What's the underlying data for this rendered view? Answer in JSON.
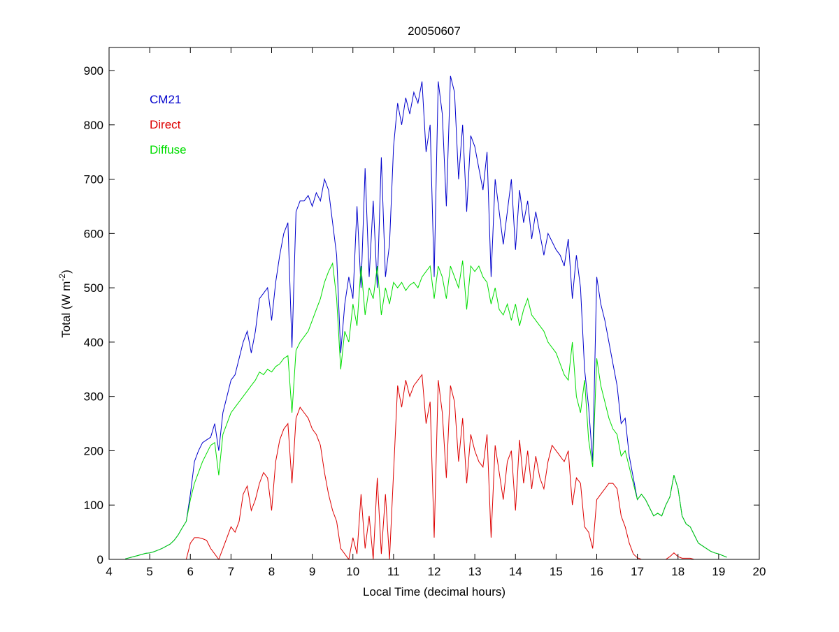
{
  "chart_data": {
    "type": "line",
    "title": "20050607",
    "xlabel": "Local Time (decimal hours)",
    "ylabel": "Total (W m",
    "ylabel_sup": "-2",
    "ylabel_end": ")",
    "xlim": [
      4,
      20
    ],
    "ylim": [
      0,
      900
    ],
    "xticks": [
      4,
      5,
      6,
      7,
      8,
      9,
      10,
      11,
      12,
      13,
      14,
      15,
      16,
      17,
      18,
      19,
      20
    ],
    "yticks": [
      0,
      100,
      200,
      300,
      400,
      500,
      600,
      700,
      800,
      900
    ],
    "grid": false,
    "legend_placement": "top-left",
    "x_start": 4.4,
    "x_step": 0.1,
    "series": [
      {
        "name": "CM21",
        "color": "#0000cc",
        "values": [
          1,
          3,
          5,
          7,
          9,
          11,
          12,
          14,
          17,
          20,
          24,
          28,
          35,
          45,
          58,
          70,
          120,
          180,
          200,
          215,
          220,
          225,
          250,
          200,
          270,
          300,
          330,
          340,
          370,
          400,
          420,
          380,
          420,
          480,
          490,
          500,
          440,
          510,
          560,
          600,
          620,
          390,
          640,
          660,
          660,
          670,
          650,
          675,
          660,
          700,
          680,
          620,
          560,
          380,
          470,
          520,
          480,
          650,
          500,
          720,
          520,
          660,
          500,
          740,
          520,
          580,
          760,
          840,
          800,
          850,
          820,
          860,
          840,
          880,
          750,
          800,
          520,
          880,
          820,
          650,
          890,
          860,
          700,
          800,
          640,
          780,
          760,
          720,
          680,
          750,
          520,
          700,
          640,
          580,
          640,
          700,
          570,
          680,
          620,
          660,
          590,
          640,
          600,
          560,
          600,
          585,
          570,
          560,
          540,
          590,
          480,
          560,
          500,
          350,
          280,
          180,
          520,
          470,
          440,
          400,
          360,
          320,
          250,
          260,
          190,
          150,
          110,
          120,
          110,
          95,
          80,
          85,
          80,
          100,
          115,
          155,
          130,
          80,
          65,
          60,
          45,
          30,
          25,
          20,
          15,
          12,
          10,
          7,
          4
        ]
      },
      {
        "name": "Direct",
        "color": "#dd0000",
        "values": [
          0,
          0,
          0,
          0,
          0,
          0,
          0,
          0,
          0,
          0,
          0,
          0,
          0,
          0,
          0,
          0,
          30,
          40,
          40,
          38,
          35,
          20,
          10,
          0,
          20,
          40,
          60,
          50,
          70,
          120,
          135,
          90,
          110,
          140,
          160,
          150,
          90,
          180,
          220,
          240,
          250,
          140,
          260,
          280,
          270,
          260,
          240,
          230,
          210,
          160,
          120,
          90,
          70,
          20,
          10,
          0,
          40,
          10,
          120,
          20,
          80,
          0,
          150,
          10,
          120,
          0,
          160,
          320,
          280,
          330,
          300,
          320,
          330,
          340,
          250,
          290,
          40,
          330,
          270,
          150,
          320,
          290,
          180,
          260,
          140,
          230,
          200,
          180,
          170,
          230,
          40,
          210,
          160,
          110,
          180,
          200,
          90,
          220,
          140,
          200,
          130,
          190,
          150,
          130,
          180,
          210,
          200,
          190,
          180,
          200,
          100,
          150,
          140,
          60,
          50,
          20,
          110,
          120,
          130,
          140,
          140,
          130,
          80,
          60,
          30,
          10,
          3,
          0,
          0,
          0,
          0,
          0,
          0,
          0,
          5,
          12,
          5,
          2,
          2,
          2,
          0,
          0,
          0,
          0,
          0,
          0,
          0,
          0,
          0
        ]
      },
      {
        "name": "Diffuse",
        "color": "#00dd00",
        "values": [
          1,
          3,
          5,
          7,
          9,
          11,
          12,
          14,
          17,
          20,
          24,
          28,
          35,
          45,
          58,
          70,
          110,
          140,
          160,
          180,
          195,
          210,
          215,
          155,
          230,
          250,
          270,
          280,
          290,
          300,
          310,
          320,
          330,
          345,
          340,
          350,
          345,
          355,
          360,
          370,
          375,
          270,
          385,
          400,
          410,
          420,
          440,
          460,
          480,
          510,
          530,
          545,
          480,
          350,
          420,
          400,
          470,
          430,
          540,
          450,
          500,
          480,
          540,
          450,
          500,
          470,
          510,
          500,
          510,
          495,
          505,
          510,
          500,
          520,
          530,
          540,
          480,
          540,
          520,
          480,
          540,
          520,
          500,
          550,
          460,
          540,
          530,
          540,
          520,
          510,
          470,
          500,
          460,
          450,
          470,
          440,
          470,
          430,
          460,
          480,
          450,
          440,
          430,
          420,
          400,
          390,
          380,
          360,
          340,
          330,
          400,
          300,
          270,
          330,
          220,
          170,
          370,
          320,
          290,
          260,
          240,
          230,
          190,
          200,
          170,
          140,
          110,
          120,
          110,
          95,
          80,
          85,
          80,
          100,
          115,
          155,
          130,
          80,
          65,
          60,
          45,
          30,
          25,
          20,
          15,
          12,
          10,
          7,
          4
        ]
      }
    ]
  }
}
